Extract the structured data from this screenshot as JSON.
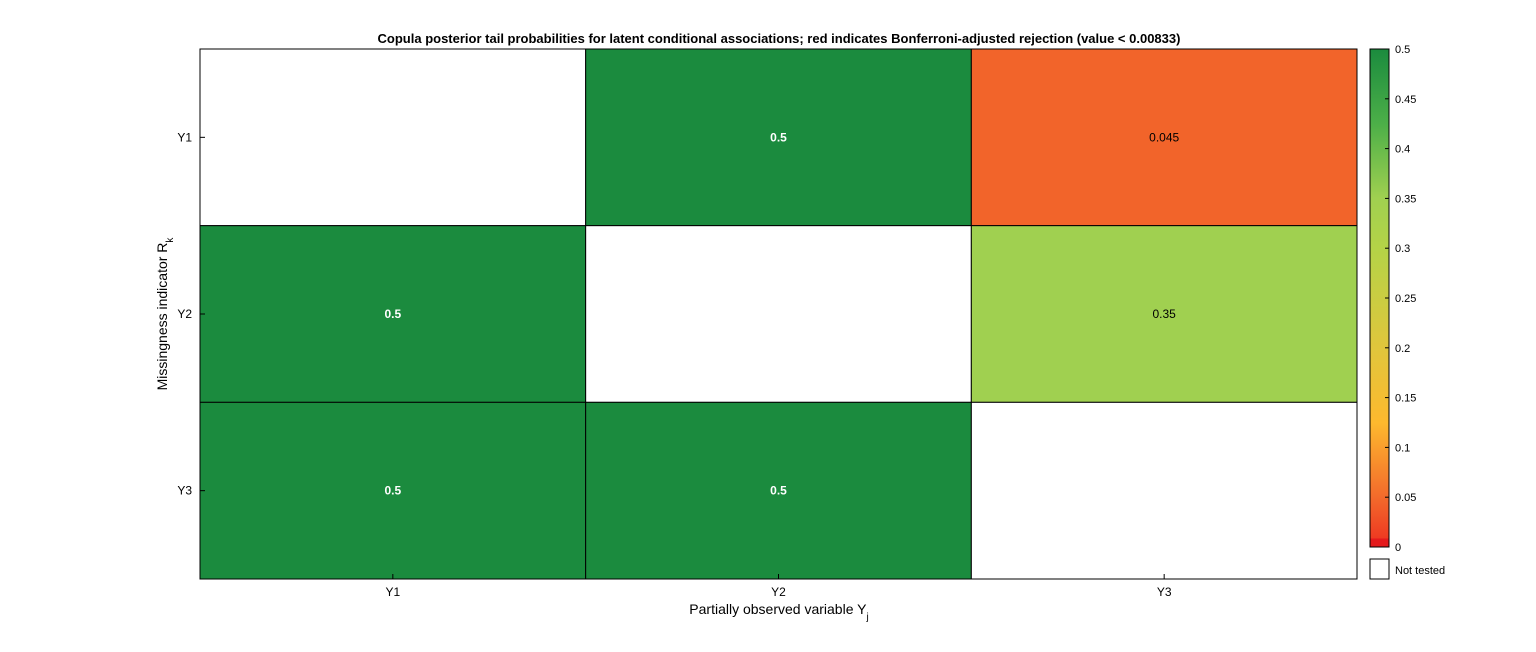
{
  "chart_data": {
    "type": "heatmap",
    "title": "Copula posterior tail probabilities for latent conditional associations; red indicates Bonferroni-adjusted rejection (value < 0.00833)",
    "xlabel": {
      "main": "Partially observed variable Y",
      "sub": "j"
    },
    "ylabel": {
      "main": "Missingness indicator R",
      "sub": "k"
    },
    "x_categories": [
      "Y1",
      "Y2",
      "Y3"
    ],
    "y_categories": [
      "Y1",
      "Y2",
      "Y3"
    ],
    "cells": [
      {
        "row": 0,
        "col": 0,
        "value": null,
        "label": ""
      },
      {
        "row": 0,
        "col": 1,
        "value": 0.5,
        "label": "0.5"
      },
      {
        "row": 0,
        "col": 2,
        "value": 0.045,
        "label": "0.045"
      },
      {
        "row": 1,
        "col": 0,
        "value": 0.5,
        "label": "0.5"
      },
      {
        "row": 1,
        "col": 1,
        "value": null,
        "label": ""
      },
      {
        "row": 1,
        "col": 2,
        "value": 0.35,
        "label": "0.35"
      },
      {
        "row": 2,
        "col": 0,
        "value": 0.5,
        "label": "0.5"
      },
      {
        "row": 2,
        "col": 1,
        "value": 0.5,
        "label": "0.5"
      },
      {
        "row": 2,
        "col": 2,
        "value": null,
        "label": ""
      }
    ],
    "threshold": 0.00833,
    "colorbar": {
      "range": [
        0,
        0.5
      ],
      "ticks": [
        0,
        0.05,
        0.1,
        0.15,
        0.2,
        0.25,
        0.3,
        0.35,
        0.4,
        0.45,
        0.5
      ],
      "tick_labels": [
        "0",
        "0.05",
        "0.1",
        "0.15",
        "0.2",
        "0.25",
        "0.3",
        "0.35",
        "0.4",
        "0.45",
        "0.5"
      ],
      "stops": [
        {
          "v": 0.0,
          "color": "#e41a1c"
        },
        {
          "v": 0.00833,
          "color": "#ee3a22"
        },
        {
          "v": 0.05,
          "color": "#f36a2b"
        },
        {
          "v": 0.125,
          "color": "#fdb92e"
        },
        {
          "v": 0.2,
          "color": "#e0c63c"
        },
        {
          "v": 0.3,
          "color": "#b4d347"
        },
        {
          "v": 0.35,
          "color": "#a0d050"
        },
        {
          "v": 0.425,
          "color": "#4caf48"
        },
        {
          "v": 0.5,
          "color": "#1b8b3e"
        }
      ],
      "rejection_color": "#e41a1c"
    },
    "legend": {
      "not_tested_label": "Not tested",
      "not_tested_color": "#ffffff"
    },
    "grid": false
  }
}
